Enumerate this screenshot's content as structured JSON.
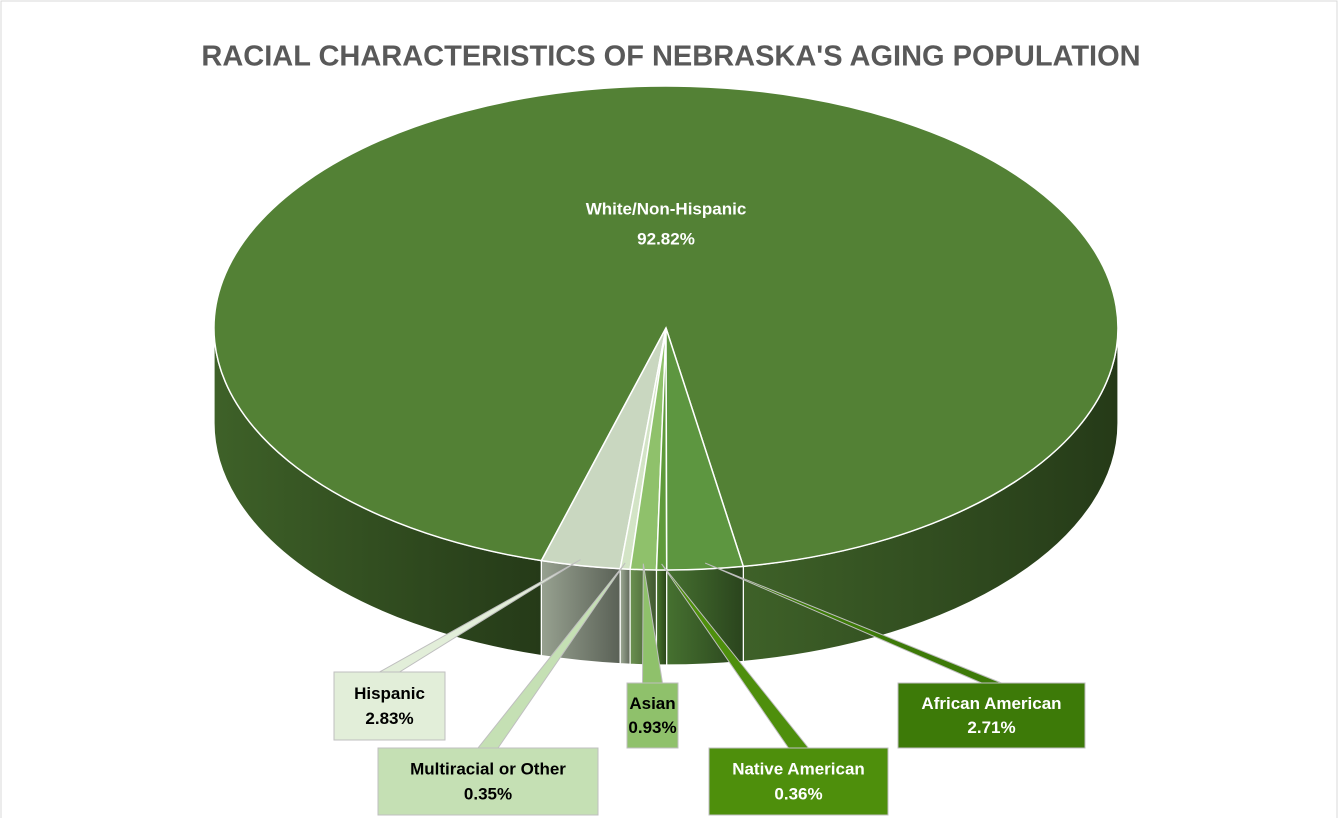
{
  "chart_data": {
    "type": "pie",
    "title": "RACIAL CHARACTERISTICS OF NEBRASKA'S AGING POPULATION",
    "categories": [
      "White/Non-Hispanic",
      "Hispanic",
      "Multiracial or Other",
      "Asian",
      "Native American",
      "African American"
    ],
    "values": [
      92.82,
      2.83,
      0.35,
      0.93,
      0.36,
      2.71
    ],
    "value_labels": [
      "92.82%",
      "2.83%",
      "0.35%",
      "0.93%",
      "0.36%",
      "2.71%"
    ],
    "colors": [
      "#538135",
      "#c9d7c0",
      "#d3e4c6",
      "#8fc16b",
      "#5f9a3b",
      "#5d9640"
    ]
  }
}
